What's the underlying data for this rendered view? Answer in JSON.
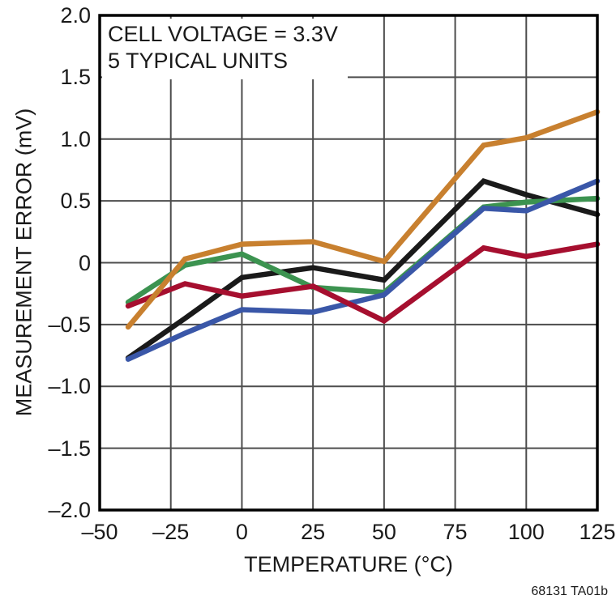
{
  "figure": {
    "watermark": "68131 TA01b"
  },
  "chart_data": {
    "type": "line",
    "title": "",
    "xlabel": "TEMPERATURE (°C)",
    "ylabel": "MEASUREMENT ERROR (mV)",
    "annotation": [
      "CELL VOLTAGE = 3.3V",
      "5 TYPICAL UNITS"
    ],
    "xlim": [
      -50,
      125
    ],
    "ylim": [
      -2.0,
      2.0
    ],
    "grid": true,
    "legend": "none",
    "x_ticks": [
      -50,
      -25,
      0,
      25,
      50,
      75,
      100,
      125
    ],
    "x_tick_labels": [
      "–50",
      "–25",
      "0",
      "25",
      "50",
      "75",
      "100",
      "125"
    ],
    "y_ticks": [
      2.0,
      1.5,
      1.0,
      0.5,
      0,
      -0.5,
      -1.0,
      -1.5,
      -2.0
    ],
    "y_tick_labels": [
      "2.0",
      "1.5",
      "1.0",
      "0.5",
      "0",
      "–0.5",
      "–1.0",
      "–1.5",
      "–2.0"
    ],
    "x": [
      -40,
      -20,
      0,
      25,
      50,
      85,
      100,
      125
    ],
    "series": [
      {
        "name": "unit-1-black",
        "color": "#1a1a1a",
        "values": [
          -0.77,
          -0.45,
          -0.12,
          -0.04,
          -0.14,
          0.66,
          0.55,
          0.39
        ]
      },
      {
        "name": "unit-2-green",
        "color": "#3c9350",
        "values": [
          -0.32,
          -0.02,
          0.07,
          -0.2,
          -0.24,
          0.45,
          0.49,
          0.52
        ]
      },
      {
        "name": "unit-3-blue",
        "color": "#3a57a8",
        "values": [
          -0.78,
          -0.57,
          -0.38,
          -0.4,
          -0.26,
          0.44,
          0.42,
          0.66
        ]
      },
      {
        "name": "unit-4-red",
        "color": "#a60f2f",
        "values": [
          -0.35,
          -0.17,
          -0.27,
          -0.19,
          -0.47,
          0.12,
          0.05,
          0.15
        ]
      },
      {
        "name": "unit-5-orange",
        "color": "#c8802f",
        "values": [
          -0.52,
          0.03,
          0.15,
          0.17,
          0.01,
          0.95,
          1.01,
          1.22
        ]
      }
    ],
    "plot_style": {
      "grid_color": "#4d4d4d",
      "border_color": "#000000",
      "line_width": 6.5,
      "text_color": "#1a1a1a",
      "background": "#ffffff"
    }
  }
}
